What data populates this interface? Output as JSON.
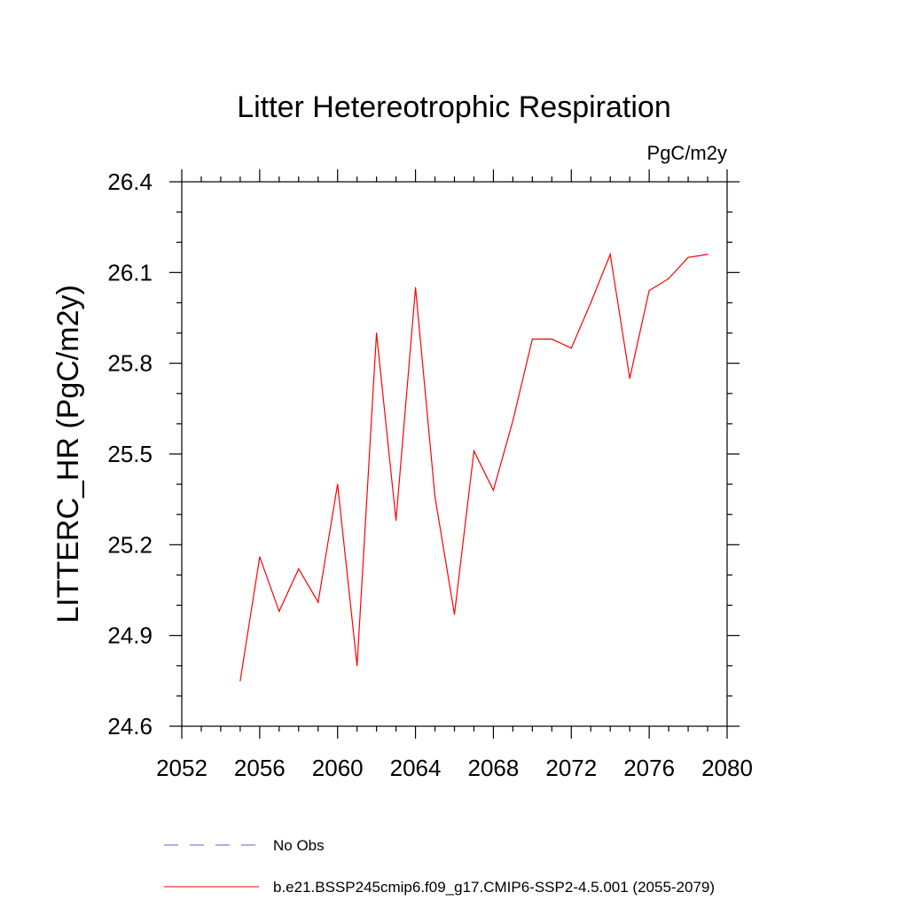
{
  "chart_data": {
    "type": "line",
    "title": "Litter Hetereotrophic Respiration",
    "units": "PgC/m2y",
    "ylabel": "LITTERC_HR  (PgC/m2y)",
    "xlabel": "",
    "xlim": [
      2052,
      2080
    ],
    "ylim": [
      24.6,
      26.4
    ],
    "xticks": [
      2052,
      2056,
      2060,
      2064,
      2068,
      2072,
      2076,
      2080
    ],
    "yticks": [
      24.6,
      24.9,
      25.2,
      25.5,
      25.8,
      26.1,
      26.4
    ],
    "ytick_labels": [
      "24.6",
      "24.9",
      "25.2",
      "25.5",
      "25.8",
      "26.1",
      "26.4"
    ],
    "series": [
      {
        "name": "b.e21.BSSP245cmip6.f09_g17.CMIP6-SSP2-4.5.001 (2055-2079)",
        "color": "#ff0000",
        "x": [
          2055,
          2056,
          2057,
          2058,
          2059,
          2060,
          2061,
          2062,
          2063,
          2064,
          2065,
          2066,
          2067,
          2068,
          2069,
          2070,
          2071,
          2072,
          2073,
          2074,
          2075,
          2076,
          2077,
          2078,
          2079
        ],
        "y": [
          24.75,
          25.16,
          24.98,
          25.12,
          25.01,
          25.4,
          24.8,
          25.9,
          25.28,
          26.05,
          25.36,
          24.97,
          25.51,
          25.38,
          25.61,
          25.88,
          25.88,
          25.85,
          26.0,
          26.16,
          25.75,
          26.04,
          26.08,
          26.15,
          26.16
        ]
      }
    ],
    "legend": [
      {
        "label": "No Obs",
        "color": "#6a5acd",
        "style": "dashed"
      },
      {
        "label": "b.e21.BSSP245cmip6.f09_g17.CMIP6-SSP2-4.5.001 (2055-2079)",
        "color": "#ff0000",
        "style": "solid"
      }
    ]
  }
}
